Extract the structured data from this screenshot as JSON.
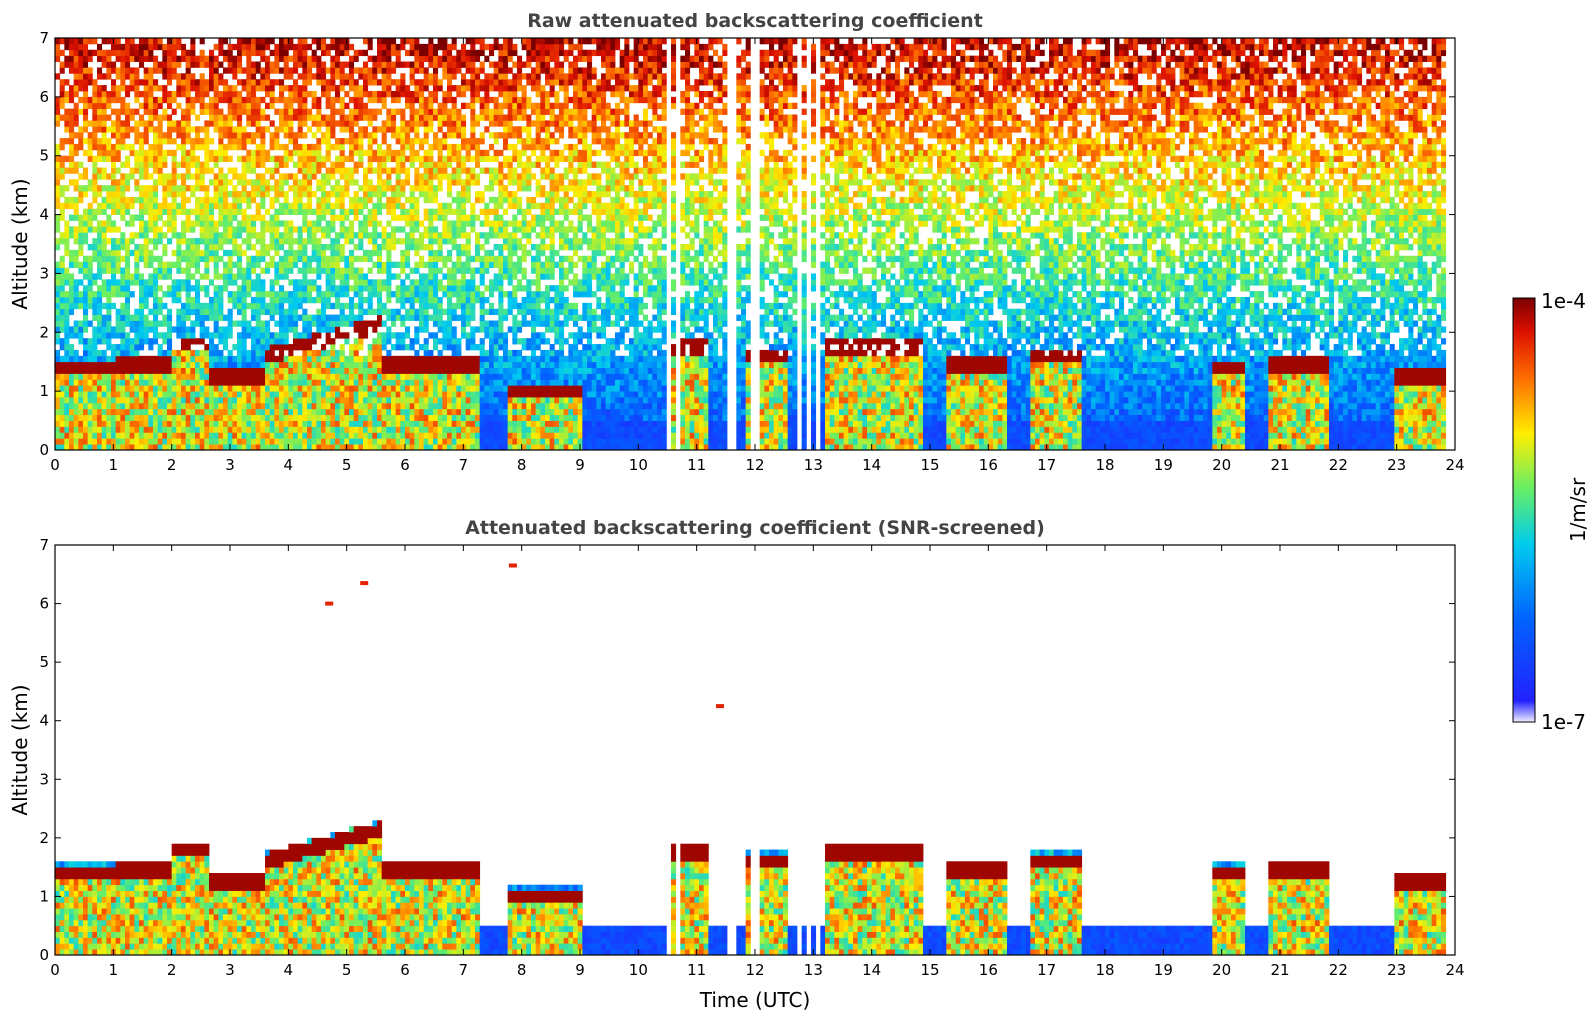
{
  "chart_data": [
    {
      "type": "heatmap",
      "title": "Raw attenuated backscattering coefficient",
      "xlabel": "",
      "ylabel": "Altitude (km)",
      "xlim": [
        0,
        24
      ],
      "ylim": [
        0,
        7
      ],
      "x_ticks": [
        "0",
        "1",
        "2",
        "3",
        "4",
        "5",
        "6",
        "7",
        "8",
        "9",
        "10",
        "11",
        "12",
        "13",
        "14",
        "15",
        "16",
        "17",
        "18",
        "19",
        "20",
        "21",
        "22",
        "23",
        "24"
      ],
      "y_ticks": [
        "0",
        "1",
        "2",
        "3",
        "4",
        "5",
        "6",
        "7"
      ],
      "data_gaps_utc": [
        10.5,
        10.65,
        11.6,
        12.0,
        12.75,
        12.9,
        13.1
      ],
      "cloud_layers": [
        {
          "x": [
            0.0,
            1.0
          ],
          "y_km": 1.4
        },
        {
          "x": [
            1.0,
            2.0
          ],
          "y_km": 1.45
        },
        {
          "x": [
            2.0,
            2.6
          ],
          "y_km": 1.8
        },
        {
          "x": [
            2.6,
            3.6
          ],
          "y_km": 1.25
        },
        {
          "x": [
            3.6,
            5.6
          ],
          "y_km": 1.6,
          "y_end_km": 2.15
        },
        {
          "x": [
            5.6,
            7.3
          ],
          "y_km": 1.45
        },
        {
          "x": [
            7.8,
            9.0
          ],
          "y_km": 1.0
        },
        {
          "x": [
            10.5,
            11.2
          ],
          "y_km": 1.75
        },
        {
          "x": [
            11.8,
            12.6
          ],
          "y_km": 1.6
        },
        {
          "x": [
            13.2,
            14.9
          ],
          "y_km": 1.75
        },
        {
          "x": [
            15.3,
            16.3
          ],
          "y_km": 1.45
        },
        {
          "x": [
            16.7,
            17.6
          ],
          "y_km": 1.6
        },
        {
          "x": [
            19.8,
            20.4
          ],
          "y_km": 1.4
        },
        {
          "x": [
            20.8,
            21.8
          ],
          "y_km": 1.45
        },
        {
          "x": [
            23.0,
            23.8
          ],
          "y_km": 1.25
        }
      ]
    },
    {
      "type": "heatmap",
      "title": "Attenuated backscattering coefficient (SNR-screened)",
      "xlabel": "Time (UTC)",
      "ylabel": "Altitude (km)",
      "xlim": [
        0,
        24
      ],
      "ylim": [
        0,
        7
      ],
      "x_ticks": [
        "0",
        "1",
        "2",
        "3",
        "4",
        "5",
        "6",
        "7",
        "8",
        "9",
        "10",
        "11",
        "12",
        "13",
        "14",
        "15",
        "16",
        "17",
        "18",
        "19",
        "20",
        "21",
        "22",
        "23",
        "24"
      ],
      "y_ticks": [
        "0",
        "1",
        "2",
        "3",
        "4",
        "5",
        "6",
        "7"
      ],
      "isolated_features": [
        {
          "x": 7.85,
          "y_km": 6.65
        },
        {
          "x": 5.3,
          "y_km": 6.35
        },
        {
          "x": 4.7,
          "y_km": 6.0
        },
        {
          "x": 11.4,
          "y_km": 4.25
        }
      ]
    }
  ],
  "colorbar": {
    "label": "1/m/sr",
    "max_label": "1e-4",
    "min_label": "1e-7",
    "scale": "log",
    "colormap": "jet",
    "colors": [
      "#eeeeff",
      "#0000ff",
      "#00bbff",
      "#66ee66",
      "#ffee00",
      "#ff7700",
      "#dd1100",
      "#7a0000"
    ]
  }
}
